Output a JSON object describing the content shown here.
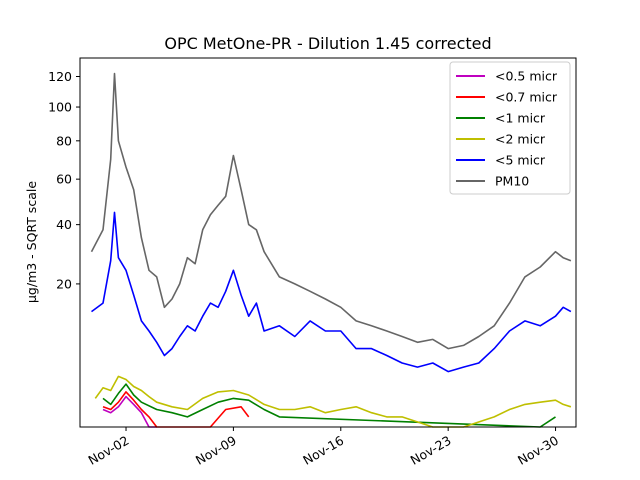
{
  "chart_data": {
    "type": "line",
    "title": "OPC MetOne-PR - Dilution 1.45 corrected",
    "xlabel": "",
    "ylabel": "µg/m3 - SQRT scale",
    "yscale": "sqrt",
    "ylim": [
      0,
      133
    ],
    "yticks": [
      20,
      40,
      60,
      80,
      100,
      120
    ],
    "xlim": [
      "2024-10-30T00:00",
      "2024-12-01T08:00"
    ],
    "xticks": [
      {
        "date": "2024-11-02",
        "label": "Nov-02"
      },
      {
        "date": "2024-11-09",
        "label": "Nov-09"
      },
      {
        "date": "2024-11-16",
        "label": "Nov-16"
      },
      {
        "date": "2024-11-23",
        "label": "Nov-23"
      },
      {
        "date": "2024-11-30",
        "label": "Nov-30"
      }
    ],
    "grid": false,
    "legend_position": "top-right",
    "series": [
      {
        "name": "<0.5 micr",
        "color": "#bf00bf",
        "x": [
          "2024-10-31T12:00",
          "2024-11-01T00:00",
          "2024-11-01T12:00",
          "2024-11-02T00:00",
          "2024-11-02T12:00",
          "2024-11-03T00:00",
          "2024-11-03T12:00",
          "2024-11-04T00:00"
        ],
        "y": [
          0.3,
          0.2,
          0.4,
          0.9,
          0.5,
          0.2,
          0.0,
          0.0
        ]
      },
      {
        "name": "<0.7 micr",
        "color": "#ff0000",
        "x": [
          "2024-10-31T12:00",
          "2024-11-01T00:00",
          "2024-11-01T12:00",
          "2024-11-02T00:00",
          "2024-11-02T12:00",
          "2024-11-03T00:00",
          "2024-11-03T12:00",
          "2024-11-04T00:00",
          "2024-11-07T12:00",
          "2024-11-08T12:00",
          "2024-11-09T12:00",
          "2024-11-10T00:00"
        ],
        "y": [
          0.4,
          0.3,
          0.6,
          1.2,
          0.7,
          0.3,
          0.1,
          0.0,
          0.0,
          0.3,
          0.4,
          0.1
        ]
      },
      {
        "name": "<1 micr",
        "color": "#008000",
        "x": [
          "2024-10-31T12:00",
          "2024-11-01T00:00",
          "2024-11-01T12:00",
          "2024-11-02T00:00",
          "2024-11-02T12:00",
          "2024-11-03T00:00",
          "2024-11-04T00:00",
          "2024-11-05T00:00",
          "2024-11-06T00:00",
          "2024-11-07T00:00",
          "2024-11-08T00:00",
          "2024-11-09T00:00",
          "2024-11-10T00:00",
          "2024-11-11T00:00",
          "2024-11-12T00:00",
          "2024-11-29T00:00",
          "2024-11-30T00:00"
        ],
        "y": [
          0.8,
          0.5,
          1.1,
          1.8,
          1.0,
          0.6,
          0.3,
          0.2,
          0.1,
          0.3,
          0.6,
          0.8,
          0.7,
          0.3,
          0.1,
          0.0,
          0.1
        ]
      },
      {
        "name": "<2 micr",
        "color": "#bfbf00",
        "x": [
          "2024-10-31T00:00",
          "2024-10-31T12:00",
          "2024-11-01T00:00",
          "2024-11-01T12:00",
          "2024-11-02T00:00",
          "2024-11-02T12:00",
          "2024-11-03T00:00",
          "2024-11-03T12:00",
          "2024-11-04T00:00",
          "2024-11-05T00:00",
          "2024-11-06T00:00",
          "2024-11-07T00:00",
          "2024-11-08T00:00",
          "2024-11-09T00:00",
          "2024-11-10T00:00",
          "2024-11-11T00:00",
          "2024-11-12T00:00",
          "2024-11-13T00:00",
          "2024-11-14T00:00",
          "2024-11-15T00:00",
          "2024-11-16T00:00",
          "2024-11-17T00:00",
          "2024-11-18T00:00",
          "2024-11-19T00:00",
          "2024-11-20T00:00",
          "2024-11-22T00:00",
          "2024-11-24T00:00",
          "2024-11-26T00:00",
          "2024-11-27T00:00",
          "2024-11-28T00:00",
          "2024-11-29T00:00",
          "2024-11-30T00:00",
          "2024-11-30T12:00",
          "2024-12-01T00:00"
        ],
        "y": [
          0.8,
          1.5,
          1.3,
          2.5,
          2.2,
          1.6,
          1.3,
          0.9,
          0.6,
          0.4,
          0.3,
          0.8,
          1.2,
          1.3,
          1.0,
          0.5,
          0.3,
          0.3,
          0.4,
          0.2,
          0.3,
          0.4,
          0.2,
          0.1,
          0.1,
          0.0,
          0.0,
          0.1,
          0.3,
          0.5,
          0.6,
          0.7,
          0.5,
          0.4
        ]
      },
      {
        "name": "<5 micr",
        "color": "#0000ff",
        "x": [
          "2024-10-30T18:00",
          "2024-10-31T12:00",
          "2024-11-01T00:00",
          "2024-11-01T06:00",
          "2024-11-01T12:00",
          "2024-11-02T00:00",
          "2024-11-02T12:00",
          "2024-11-03T00:00",
          "2024-11-03T12:00",
          "2024-11-04T00:00",
          "2024-11-04T12:00",
          "2024-11-05T00:00",
          "2024-11-05T12:00",
          "2024-11-06T00:00",
          "2024-11-06T12:00",
          "2024-11-07T00:00",
          "2024-11-07T12:00",
          "2024-11-08T00:00",
          "2024-11-08T12:00",
          "2024-11-09T00:00",
          "2024-11-09T12:00",
          "2024-11-10T00:00",
          "2024-11-10T12:00",
          "2024-11-11T00:00",
          "2024-11-12T00:00",
          "2024-11-13T00:00",
          "2024-11-14T00:00",
          "2024-11-15T00:00",
          "2024-11-16T00:00",
          "2024-11-17T00:00",
          "2024-11-18T00:00",
          "2024-11-19T00:00",
          "2024-11-20T00:00",
          "2024-11-21T00:00",
          "2024-11-22T00:00",
          "2024-11-23T00:00",
          "2024-11-24T00:00",
          "2024-11-25T00:00",
          "2024-11-26T00:00",
          "2024-11-27T00:00",
          "2024-11-28T00:00",
          "2024-11-29T00:00",
          "2024-11-30T00:00",
          "2024-11-30T12:00",
          "2024-12-01T00:00"
        ],
        "y": [
          13,
          15,
          27,
          45,
          28,
          24,
          17,
          11,
          9,
          7,
          5,
          6,
          8,
          10,
          9,
          12,
          15,
          14,
          18,
          24,
          17,
          12,
          15,
          9,
          10,
          8,
          11,
          9,
          9,
          6,
          6,
          5,
          4,
          3.5,
          4,
          3,
          3.5,
          4,
          6,
          9,
          11,
          10,
          12,
          14,
          13
        ]
      },
      {
        "name": "PM10",
        "color": "#666666",
        "x": [
          "2024-10-30T18:00",
          "2024-10-31T12:00",
          "2024-11-01T00:00",
          "2024-11-01T06:00",
          "2024-11-01T12:00",
          "2024-11-02T00:00",
          "2024-11-02T12:00",
          "2024-11-03T00:00",
          "2024-11-03T12:00",
          "2024-11-04T00:00",
          "2024-11-04T12:00",
          "2024-11-05T00:00",
          "2024-11-05T12:00",
          "2024-11-06T00:00",
          "2024-11-06T12:00",
          "2024-11-07T00:00",
          "2024-11-07T12:00",
          "2024-11-08T00:00",
          "2024-11-08T12:00",
          "2024-11-09T00:00",
          "2024-11-09T12:00",
          "2024-11-10T00:00",
          "2024-11-10T12:00",
          "2024-11-11T00:00",
          "2024-11-12T00:00",
          "2024-11-13T00:00",
          "2024-11-14T00:00",
          "2024-11-15T00:00",
          "2024-11-16T00:00",
          "2024-11-17T00:00",
          "2024-11-18T00:00",
          "2024-11-19T00:00",
          "2024-11-20T00:00",
          "2024-11-21T00:00",
          "2024-11-22T00:00",
          "2024-11-23T00:00",
          "2024-11-24T00:00",
          "2024-11-25T00:00",
          "2024-11-26T00:00",
          "2024-11-27T00:00",
          "2024-11-28T00:00",
          "2024-11-29T00:00",
          "2024-11-30T00:00",
          "2024-11-30T12:00",
          "2024-12-01T00:00"
        ],
        "y": [
          30,
          38,
          70,
          122,
          80,
          66,
          55,
          35,
          24,
          22,
          14,
          16,
          20,
          28,
          26,
          38,
          44,
          48,
          52,
          72,
          55,
          40,
          38,
          30,
          22,
          20,
          18,
          16,
          14,
          11,
          10,
          9,
          8,
          7,
          7.5,
          6,
          6.5,
          8,
          10,
          15,
          22,
          25,
          30,
          28,
          27
        ]
      }
    ]
  }
}
